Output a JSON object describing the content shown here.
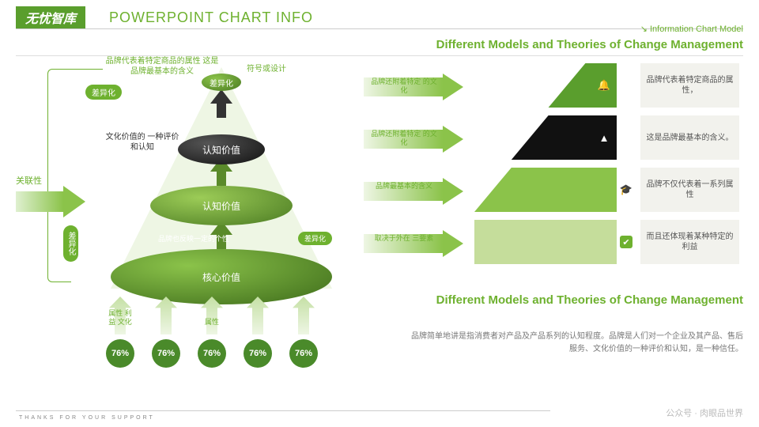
{
  "header": {
    "logo": "无忧智库",
    "title": "POWERPOINT CHART INFO",
    "info": "↘ Information Chart Model"
  },
  "subhead": "Different Models and Theories of Change Management",
  "left": {
    "topAnno": "品牌代表着特定商品的属性\n这是品牌最基本的含义",
    "badge1": "差异化",
    "apex": "差异化",
    "apexNote": "符号或设计",
    "midAnno": "文化价值的\n一种评价和认知",
    "leftLabel": "关联性",
    "vbadge": "差异化",
    "ell1": "认知价值",
    "ell2": "认知价值",
    "ell3": "核心价值",
    "tinyBadge": "差异化",
    "tinyNote": "品牌也反映一定的个性",
    "bottoms": [
      {
        "lbl": "属性\n利益\n文化",
        "pct": "76%"
      },
      {
        "lbl": "",
        "pct": "76%"
      },
      {
        "lbl": "属性",
        "pct": "76%"
      },
      {
        "lbl": "",
        "pct": "76%"
      },
      {
        "lbl": "",
        "pct": "76%"
      }
    ]
  },
  "rows": [
    {
      "a": "品牌还附着特定\n的文化",
      "tri": {
        "bg": "#5a9e2d",
        "shape": "tr"
      },
      "icon": "🔔",
      "iconColor": "#fff",
      "desc": "品牌代表着特定商品的属性，"
    },
    {
      "a": "品牌还附着特定\n的文化",
      "tri": {
        "bg": "#111",
        "shape": "trap1"
      },
      "icon": "▲",
      "iconColor": "#fff",
      "desc": "这是品牌最基本的含义。"
    },
    {
      "a": "品牌最基本的含义",
      "tri": {
        "bg": "#8bc34a",
        "shape": "trap2"
      },
      "icon": "🎓",
      "iconColor": "#6eb12f",
      "desc": "品牌不仅代表着一系列属性"
    },
    {
      "a": "取决于外在\n三要素",
      "tri": {
        "bg": "#c5dd9b",
        "shape": "bl"
      },
      "icon": "✔",
      "iconColor": "#fff",
      "iconBg": "#6eb12f",
      "desc": "而且还体现着某种特定的利益"
    }
  ],
  "subhead2": "Different Models and Theories of Change Management",
  "para": "品牌简单地讲是指消费者对产品及产品系列的认知程度。品牌是人们对一个企业及其产品、售后服务、文化价值的一种评价和认知，是一种信任。",
  "footer": "THANKS FOR YOUR SUPPORT",
  "wm": "公众号 · 肉眼品世界",
  "colors": {
    "primary": "#6eb12f",
    "dark": "#4a8a2a"
  }
}
